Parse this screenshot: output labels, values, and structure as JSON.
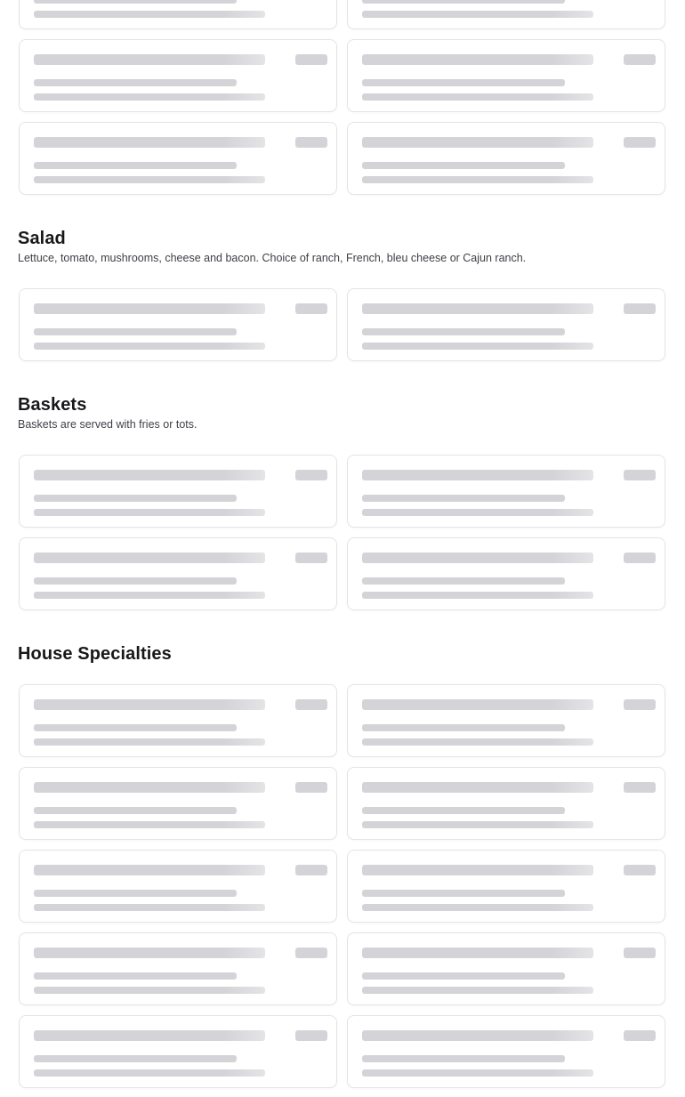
{
  "loading_state": true,
  "colors": {
    "skeleton": "#d4d4d8",
    "card_border": "#e4e4e7",
    "heading": "#18181b",
    "description": "#3f3f46"
  },
  "sections": [
    {
      "title": "",
      "description": "",
      "skeleton_cards": 6
    },
    {
      "title": "Salad",
      "description": "Lettuce, tomato, mushrooms, cheese and bacon. Choice of ranch, French, bleu cheese or Cajun ranch.",
      "skeleton_cards": 2
    },
    {
      "title": "Baskets",
      "description": "Baskets are served with fries or tots.",
      "skeleton_cards": 4
    },
    {
      "title": "House Specialties",
      "description": "",
      "skeleton_cards": 10
    }
  ]
}
